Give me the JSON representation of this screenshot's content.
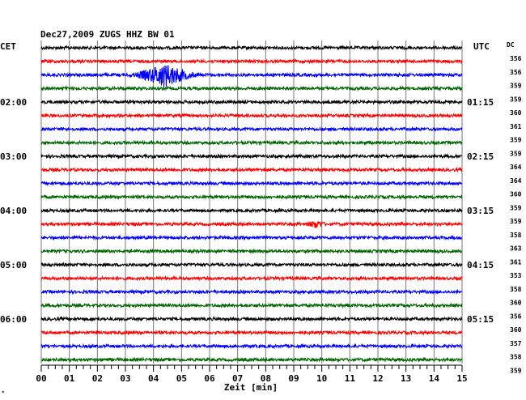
{
  "header": {
    "title": "Dec27,2009   ZUGS HHZ BW 01",
    "left_label": "CET",
    "right_label": "UTC",
    "dc_label": "DC"
  },
  "colors": {
    "trace_cycle": [
      "#000000",
      "#ff0000",
      "#0000ff",
      "#006400"
    ],
    "grid": "#777777",
    "background": "#ffffff"
  },
  "chart_data": {
    "type": "line",
    "title": "Dec27,2009   ZUGS HHZ BW 01",
    "xlabel": "Zeit [min]",
    "ylabel": "",
    "xlim": [
      0,
      15
    ],
    "x_ticks": [
      "00",
      "01",
      "02",
      "03",
      "04",
      "05",
      "06",
      "07",
      "08",
      "09",
      "10",
      "11",
      "12",
      "13",
      "14",
      "15"
    ],
    "minor_ticks_per_minute": 4,
    "grid": true,
    "row_count": 24,
    "left_hour_labels": [
      {
        "row": 4,
        "label": "02:00"
      },
      {
        "row": 8,
        "label": "03:00"
      },
      {
        "row": 12,
        "label": "04:00"
      },
      {
        "row": 16,
        "label": "05:00"
      },
      {
        "row": 20,
        "label": "06:00"
      }
    ],
    "right_hour_labels": [
      {
        "row": 4,
        "label": "01:15"
      },
      {
        "row": 8,
        "label": "02:15"
      },
      {
        "row": 12,
        "label": "03:15"
      },
      {
        "row": 16,
        "label": "04:15"
      },
      {
        "row": 20,
        "label": "05:15"
      }
    ],
    "dc_values": [
      "356",
      "356",
      "359",
      "359",
      "360",
      "361",
      "359",
      "359",
      "364",
      "364",
      "360",
      "359",
      "359",
      "358",
      "363",
      "361",
      "353",
      "358",
      "360",
      "356",
      "360",
      "357",
      "358",
      "359"
    ],
    "events": [
      {
        "row": 2,
        "center_min": 4.4,
        "half_width_min": 1.4,
        "amplitude": 14
      },
      {
        "row": 13,
        "center_min": 9.8,
        "half_width_min": 0.45,
        "amplitude": 4
      }
    ],
    "noise_amplitude": 1.8
  }
}
